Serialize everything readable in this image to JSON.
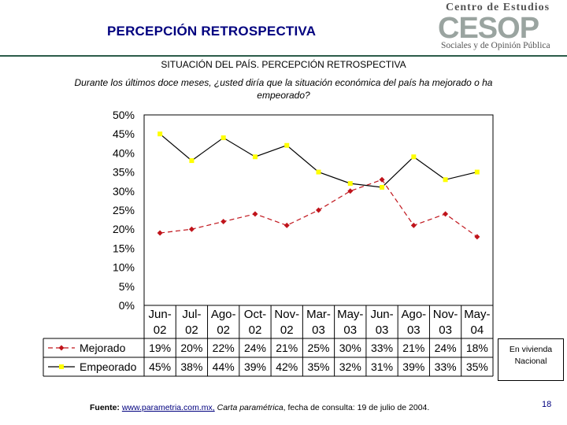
{
  "header": {
    "title": "PERCEPCIÓN RETROSPECTIVA",
    "logo_top": "Centro de Estudios",
    "logo_mark": "CESOP",
    "logo_bottom": "Sociales y de Opinión Pública"
  },
  "chart_data": {
    "type": "line",
    "title": "SITUACIÓN DEL PAÍS. PERCEPCIÓN RETROSPECTIVA",
    "subtitle": "Durante los últimos doce meses, ¿usted diría que la situación económica del país ha mejorado o ha empeorado?",
    "categories": [
      [
        "Jun-",
        "02"
      ],
      [
        "Jul-",
        "02"
      ],
      [
        "Ago-",
        "02"
      ],
      [
        "Oct-",
        "02"
      ],
      [
        "Nov-",
        "02"
      ],
      [
        "Mar-",
        "03"
      ],
      [
        "May-",
        "03"
      ],
      [
        "Jun-",
        "03"
      ],
      [
        "Ago-",
        "03"
      ],
      [
        "Nov-",
        "03"
      ],
      [
        "May-",
        "04"
      ]
    ],
    "series": [
      {
        "name": "Mejorado",
        "color": "#c0141b",
        "marker": "diamond",
        "dash": "dashed",
        "values": [
          19,
          20,
          22,
          24,
          21,
          25,
          30,
          33,
          21,
          24,
          18
        ],
        "labels": [
          "19%",
          "20%",
          "22%",
          "24%",
          "21%",
          "25%",
          "30%",
          "33%",
          "21%",
          "24%",
          "18%"
        ]
      },
      {
        "name": "Empeorado",
        "color": "#000000",
        "marker_color": "#ffff00",
        "marker": "square",
        "dash": "solid",
        "values": [
          45,
          38,
          44,
          39,
          42,
          35,
          32,
          31,
          39,
          33,
          35
        ],
        "labels": [
          "45%",
          "38%",
          "44%",
          "39%",
          "42%",
          "35%",
          "32%",
          "31%",
          "39%",
          "33%",
          "35%"
        ]
      }
    ],
    "y_ticks": [
      "0%",
      "5%",
      "10%",
      "15%",
      "20%",
      "25%",
      "30%",
      "35%",
      "40%",
      "45%",
      "50%"
    ],
    "ylim": [
      0,
      50
    ],
    "grid": false,
    "legend": "data-table-left"
  },
  "side_note": {
    "line1": "En vivienda",
    "line2": "Nacional"
  },
  "footer": {
    "source_label": "Fuente:",
    "source_link": "www.parametria.com.mx,",
    "source_pub": "Carta paramétrica",
    "source_rest": ", fecha de consulta: 19 de julio de 2004.",
    "page_number": "18"
  }
}
